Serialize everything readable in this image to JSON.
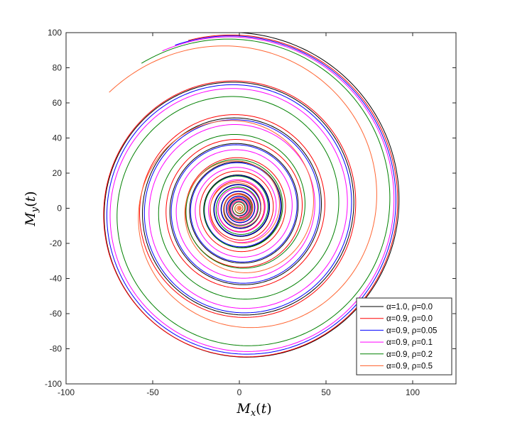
{
  "chart_data": {
    "type": "line",
    "xlabel": "M_x(t)",
    "ylabel": "M_y(t)",
    "xlim": [
      -100,
      125
    ],
    "ylim": [
      -100,
      100
    ],
    "xticks": [
      -100,
      -50,
      0,
      50,
      100
    ],
    "yticks": [
      -100,
      -80,
      -60,
      -40,
      -20,
      0,
      20,
      40,
      60,
      80,
      100
    ],
    "x_tick_labels": [
      "-100",
      "-50",
      "0",
      "50",
      "100"
    ],
    "y_tick_labels": [
      "-100",
      "-80",
      "-60",
      "-40",
      "-20",
      "0",
      "20",
      "40",
      "60",
      "80",
      "100"
    ],
    "grid": false,
    "legend_position": "bottom-right",
    "series": [
      {
        "name": "α=1.0, ρ=0.0",
        "color": "#000000",
        "start": [
          0,
          100
        ],
        "omega": 1.0,
        "gamma": 0.053,
        "beta": 0.0,
        "x": [
          0,
          36,
          53,
          38,
          0,
          -33,
          -33,
          -14,
          15,
          21,
          13,
          -3,
          -10
        ],
        "y": [
          100,
          72,
          25,
          -28,
          -39,
          -14,
          18,
          28,
          9,
          -5,
          -12,
          -9,
          0
        ]
      },
      {
        "name": "α=0.9, ρ=0.0",
        "color": "#ff0000",
        "start": [
          0,
          100
        ],
        "omega": 1.0,
        "gamma": 0.049,
        "beta": 0.3,
        "x": [
          0,
          72,
          85,
          54,
          0,
          -33,
          -26,
          -2
        ],
        "y": [
          100,
          90,
          4,
          -45,
          -55,
          -22,
          15,
          24
        ]
      },
      {
        "name": "α=0.9, ρ=0.05",
        "color": "#0000ff",
        "start": [
          0,
          100
        ],
        "omega": 1.0,
        "gamma": 0.053,
        "beta": 0.38,
        "x": [
          0,
          68,
          78,
          45,
          0,
          -30,
          -19,
          0
        ],
        "y": [
          100,
          85,
          0,
          -45,
          -47,
          -17,
          15,
          17
        ]
      },
      {
        "name": "α=0.9, ρ=0.1",
        "color": "#ff00ff",
        "start": [
          0,
          100
        ],
        "omega": 1.0,
        "gamma": 0.057,
        "beta": 0.46,
        "x": [
          0,
          63,
          73,
          38,
          0,
          -28,
          -12
        ],
        "y": [
          100,
          80,
          -3,
          -44,
          -40,
          -11,
          14
        ]
      },
      {
        "name": "α=0.9, ρ=0.2",
        "color": "#008000",
        "start": [
          0,
          100
        ],
        "omega": 1.0,
        "gamma": 0.066,
        "beta": 0.6,
        "x": [
          0,
          55,
          60,
          25,
          0,
          -13
        ],
        "y": [
          100,
          70,
          0,
          -31,
          -29,
          -5
        ]
      },
      {
        "name": "α=0.9, ρ=0.5",
        "color": "#ff6633",
        "start": [
          0,
          100
        ],
        "omega": 1.0,
        "gamma": 0.098,
        "beta": 0.85,
        "x": [
          0,
          36,
          46,
          23,
          0
        ],
        "y": [
          100,
          72,
          30,
          -7,
          -14
        ]
      }
    ]
  }
}
